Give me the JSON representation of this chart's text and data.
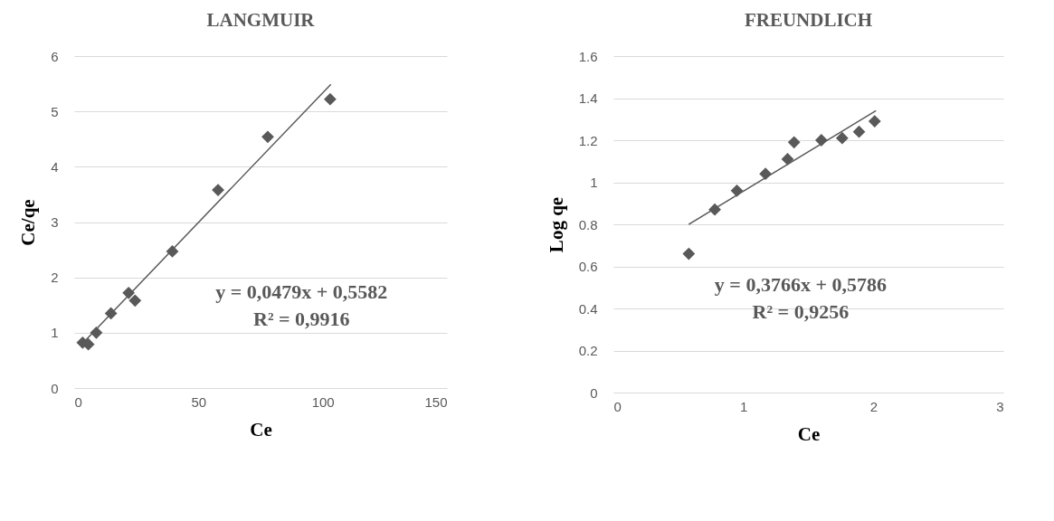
{
  "chart_data": [
    {
      "type": "scatter",
      "title": "LANGMUIR",
      "xlabel": "Ce",
      "ylabel": "Ce/qe",
      "xlim": [
        0,
        150
      ],
      "xticks": [
        0,
        50,
        100,
        150
      ],
      "ylim": [
        0,
        6
      ],
      "yticks": [
        0,
        1,
        2,
        3,
        4,
        5,
        6
      ],
      "grid": "y",
      "series": [
        {
          "type": "scatter",
          "marker": "diamond",
          "color": "#595959",
          "x": [
            3.4,
            5.7,
            8.9,
            14.8,
            21.9,
            24.5,
            39.5,
            57.9,
            77.9,
            103
          ],
          "values": [
            0.82,
            0.79,
            1.0,
            1.35,
            1.72,
            1.58,
            2.47,
            3.58,
            4.54,
            5.22
          ]
        },
        {
          "type": "line",
          "marker": "none",
          "color": "#595959",
          "x": [
            3,
            103.3
          ],
          "values": [
            0.79,
            5.49
          ]
        }
      ],
      "annotations": [
        "y = 0,0479x + 0,5582",
        "R² = 0,9916"
      ]
    },
    {
      "type": "scatter",
      "title": "FREUNDLICH",
      "xlabel": "Ce",
      "ylabel": "Log qe",
      "xlim": [
        0,
        3
      ],
      "xticks": [
        0,
        1,
        2,
        3
      ],
      "ylim": [
        0,
        1.6
      ],
      "yticks": [
        0,
        0.2,
        0.4,
        0.6,
        0.8,
        1,
        1.2,
        1.4,
        1.6
      ],
      "grid": "y",
      "series": [
        {
          "type": "scatter",
          "marker": "diamond",
          "color": "#595959",
          "x": [
            0.58,
            0.78,
            0.95,
            1.17,
            1.34,
            1.39,
            1.6,
            1.76,
            1.89,
            2.01
          ],
          "values": [
            0.66,
            0.87,
            0.96,
            1.04,
            1.11,
            1.19,
            1.2,
            1.21,
            1.24,
            1.29
          ]
        },
        {
          "type": "line",
          "marker": "none",
          "color": "#595959",
          "x": [
            0.58,
            2.02
          ],
          "values": [
            0.8,
            1.34
          ]
        }
      ],
      "annotations": [
        "y = 0,3766x + 0,5786",
        "R² = 0,9256"
      ]
    }
  ]
}
